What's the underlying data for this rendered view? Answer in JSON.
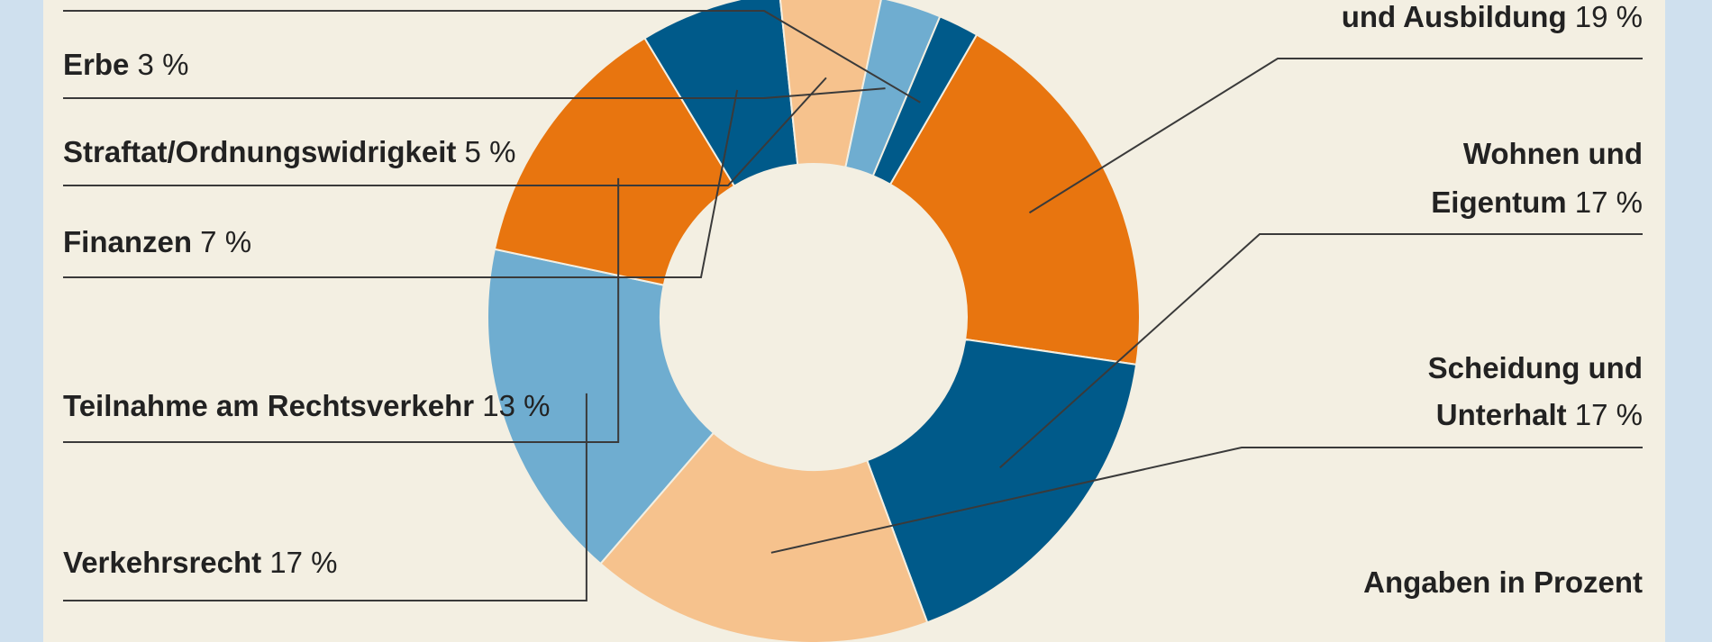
{
  "chart_data": {
    "type": "pie",
    "donut": true,
    "note": "Angaben in Prozent",
    "slices": [
      {
        "label": "und Ausbildung",
        "display": "und Ausbildung 19 %",
        "value": 19,
        "color": "#e8750f"
      },
      {
        "label": "Wohnen und Eigentum",
        "display": "Wohnen und Eigentum 17 %",
        "value": 17,
        "color": "#005a8a"
      },
      {
        "label": "Scheidung und Unterhalt",
        "display": "Scheidung und Unterhalt 17 %",
        "value": 17,
        "color": "#f6c28d"
      },
      {
        "label": "Verkehrsrecht",
        "display": "Verkehrsrecht 17 %",
        "value": 17,
        "color": "#6fadd0"
      },
      {
        "label": "Teilnahme am Rechtsverkehr",
        "display": "Teilnahme am Rechtsverkehr 13 %",
        "value": 13,
        "color": "#e8750f"
      },
      {
        "label": "Finanzen",
        "display": "Finanzen 7 %",
        "value": 7,
        "color": "#005a8a"
      },
      {
        "label": "Straftat/Ordnungswidrigkeit",
        "display": "Straftat/Ordnungswidrigkeit 5 %",
        "value": 5,
        "color": "#f6c28d"
      },
      {
        "label": "Erbe",
        "display": "Erbe 3 %",
        "value": 3,
        "color": "#6fadd0"
      },
      {
        "label": "",
        "display": "",
        "value": 2,
        "color": "#005a8a"
      }
    ]
  }
}
